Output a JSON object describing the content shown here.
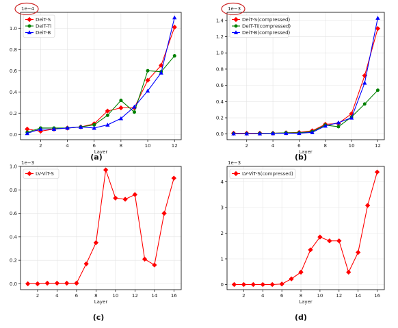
{
  "chart_data": [
    {
      "type": "line",
      "caption": "(a)",
      "xlabel": "Layer",
      "ylabel": "",
      "scale_label": "1e−4",
      "scale_highlighted": true,
      "xlim": [
        0.5,
        12.5
      ],
      "ylim": [
        -0.05,
        1.15
      ],
      "xticks": [
        2,
        4,
        6,
        8,
        10,
        12
      ],
      "yticks": [
        0.0,
        0.2,
        0.4,
        0.6,
        0.8,
        1.0
      ],
      "ytick_labels": [
        "0.0",
        "0.2",
        "0.4",
        "0.6",
        "0.8",
        "1.0"
      ],
      "grid": true,
      "legend": "top-left",
      "x": [
        1,
        2,
        3,
        4,
        5,
        6,
        7,
        8,
        9,
        10,
        11,
        12
      ],
      "series": [
        {
          "name": "DeiT-S",
          "color": "#ff0000",
          "marker": "diamond",
          "values": [
            0.05,
            0.03,
            0.05,
            0.06,
            0.07,
            0.1,
            0.22,
            0.25,
            0.25,
            0.51,
            0.65,
            1.01
          ]
        },
        {
          "name": "DeiT-Ti",
          "color": "#008000",
          "marker": "circle",
          "values": [
            0.02,
            0.06,
            0.06,
            0.06,
            0.07,
            0.09,
            0.18,
            0.32,
            0.21,
            0.6,
            0.59,
            0.74
          ]
        },
        {
          "name": "DeiT-B",
          "color": "#0000ff",
          "marker": "triangle",
          "values": [
            0.01,
            0.05,
            0.05,
            0.06,
            0.07,
            0.06,
            0.09,
            0.15,
            0.26,
            0.41,
            0.58,
            1.1
          ]
        }
      ]
    },
    {
      "type": "line",
      "caption": "(b)",
      "xlabel": "Layer",
      "ylabel": "",
      "scale_label": "1e−3",
      "scale_highlighted": true,
      "xlim": [
        0.5,
        12.5
      ],
      "ylim": [
        -0.07,
        1.5
      ],
      "xticks": [
        2,
        4,
        6,
        8,
        10,
        12
      ],
      "yticks": [
        0.0,
        0.2,
        0.4,
        0.6,
        0.8,
        1.0,
        1.2,
        1.4
      ],
      "ytick_labels": [
        "0.0",
        "0.2",
        "0.4",
        "0.6",
        "0.8",
        "1.0",
        "1.2",
        "1.4"
      ],
      "grid": true,
      "legend": "top-left",
      "x": [
        1,
        2,
        3,
        4,
        5,
        6,
        7,
        8,
        9,
        10,
        11,
        12
      ],
      "series": [
        {
          "name": "DeiT-S(compressed)",
          "color": "#ff0000",
          "marker": "diamond",
          "values": [
            0.01,
            0.01,
            0.01,
            0.01,
            0.015,
            0.02,
            0.04,
            0.12,
            0.13,
            0.25,
            0.72,
            1.3
          ]
        },
        {
          "name": "DeiT-Ti(compressed)",
          "color": "#008000",
          "marker": "circle",
          "values": [
            0.005,
            0.005,
            0.008,
            0.01,
            0.015,
            0.015,
            0.03,
            0.11,
            0.09,
            0.21,
            0.37,
            0.54
          ]
        },
        {
          "name": "DeiT-B(compressed)",
          "color": "#0000ff",
          "marker": "triangle",
          "values": [
            0.005,
            0.005,
            0.005,
            0.008,
            0.01,
            0.01,
            0.02,
            0.1,
            0.14,
            0.2,
            0.63,
            1.43
          ]
        }
      ]
    },
    {
      "type": "line",
      "caption": "(c)",
      "xlabel": "Layer",
      "ylabel": "",
      "scale_label": "1e−3",
      "scale_highlighted": false,
      "xlim": [
        0.25,
        16.75
      ],
      "ylim": [
        -0.05,
        1.0
      ],
      "xticks": [
        2,
        4,
        6,
        8,
        10,
        12,
        14,
        16
      ],
      "yticks": [
        0.0,
        0.2,
        0.4,
        0.6,
        0.8,
        1.0
      ],
      "ytick_labels": [
        "0.0",
        "0.2",
        "0.4",
        "0.6",
        "0.8",
        "1.0"
      ],
      "grid": true,
      "legend": "top-left",
      "x": [
        1,
        2,
        3,
        4,
        5,
        6,
        7,
        8,
        9,
        10,
        11,
        12,
        13,
        14,
        15,
        16
      ],
      "series": [
        {
          "name": "LV-ViT-S",
          "color": "#ff0000",
          "marker": "diamond",
          "values": [
            0.0,
            0.0,
            0.005,
            0.005,
            0.005,
            0.005,
            0.17,
            0.35,
            0.97,
            0.73,
            0.72,
            0.76,
            0.21,
            0.16,
            0.6,
            0.9
          ]
        }
      ]
    },
    {
      "type": "line",
      "caption": "(d)",
      "xlabel": "Layer",
      "ylabel": "",
      "scale_label": "1e−3",
      "scale_highlighted": false,
      "xlim": [
        0.25,
        16.75
      ],
      "ylim": [
        -0.2,
        4.6
      ],
      "xticks": [
        2,
        4,
        6,
        8,
        10,
        12,
        14,
        16
      ],
      "yticks": [
        0,
        1,
        2,
        3,
        4
      ],
      "ytick_labels": [
        "0",
        "1",
        "2",
        "3",
        "4"
      ],
      "grid": true,
      "legend": "top-left",
      "x": [
        1,
        2,
        3,
        4,
        5,
        6,
        7,
        8,
        9,
        10,
        11,
        12,
        13,
        14,
        15,
        16
      ],
      "series": [
        {
          "name": "LV-ViT-S(compressed)",
          "color": "#ff0000",
          "marker": "diamond",
          "values": [
            0.0,
            0.0,
            0.0,
            0.0,
            0.0,
            0.02,
            0.22,
            0.48,
            1.35,
            1.85,
            1.7,
            1.7,
            0.48,
            1.25,
            3.08,
            4.38
          ]
        }
      ]
    }
  ]
}
